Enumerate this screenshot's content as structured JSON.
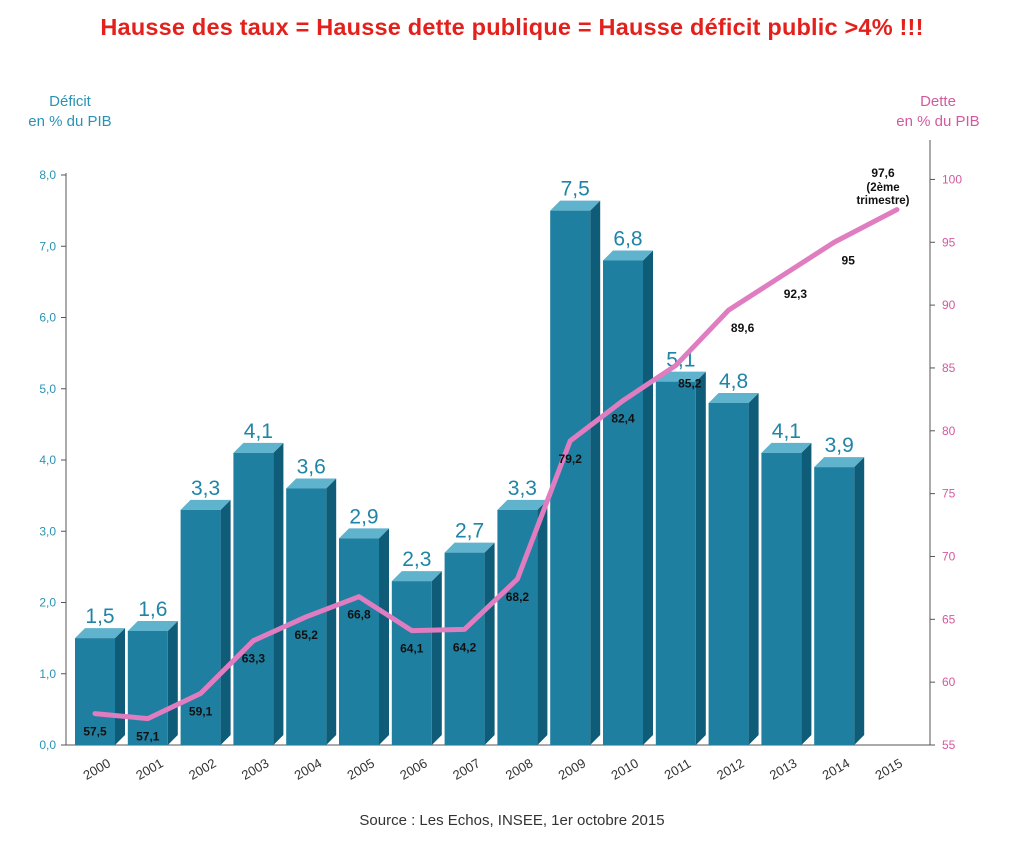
{
  "headline": "Hausse des taux = Hausse dette publique = Hausse déficit public >4% !!!",
  "source": "Source : Les Echos, INSEE, 1er octobre 2015",
  "colors": {
    "headline": "#e3201b",
    "bars": "#1f7fa0",
    "debt_line": "#e07cc0",
    "left_axis": "#2a93b4",
    "right_axis": "#d4599f"
  },
  "chart_data": {
    "type": "bar",
    "categories": [
      "2000",
      "2001",
      "2002",
      "2003",
      "2004",
      "2005",
      "2006",
      "2007",
      "2008",
      "2009",
      "2010",
      "2011",
      "2012",
      "2013",
      "2014",
      "2015"
    ],
    "left_axis": {
      "title": [
        "Déficit",
        "en % du PIB"
      ],
      "ticks": [
        "0,0",
        "1,0",
        "2,0",
        "3,0",
        "4,0",
        "5,0",
        "6,0",
        "7,0",
        "8,0"
      ],
      "ylim": [
        0,
        8
      ]
    },
    "right_axis": {
      "title": [
        "Dette",
        "en % du PIB"
      ],
      "ticks": [
        "55",
        "60",
        "65",
        "70",
        "75",
        "80",
        "85",
        "90",
        "95",
        "100"
      ],
      "ylim": [
        55,
        102.5
      ]
    },
    "series": [
      {
        "name": "Déficit en % du PIB",
        "type": "bar",
        "axis": "left",
        "values": [
          1.5,
          1.6,
          3.3,
          4.1,
          3.6,
          2.9,
          2.3,
          2.7,
          3.3,
          7.5,
          6.8,
          5.1,
          4.8,
          4.1,
          3.9,
          null
        ],
        "labels": [
          "1,5",
          "1,6",
          "3,3",
          "4,1",
          "3,6",
          "2,9",
          "2,3",
          "2,7",
          "3,3",
          "7,5",
          "6,8",
          "5,1",
          "4,8",
          "4,1",
          "3,9",
          ""
        ]
      },
      {
        "name": "Dette en % du PIB",
        "type": "line",
        "axis": "right",
        "values": [
          57.5,
          57.1,
          59.1,
          63.3,
          65.2,
          66.8,
          64.1,
          64.2,
          68.2,
          79.2,
          82.4,
          85.2,
          89.6,
          92.3,
          95,
          97.6
        ],
        "labels": [
          "57,5",
          "57,1",
          "59,1",
          "63,3",
          "65,2",
          "66,8",
          "64,1",
          "64,2",
          "68,2",
          "79,2",
          "82,4",
          "85,2",
          "89,6",
          "92,3",
          "95",
          "97,6"
        ],
        "last_label_note": [
          "(2ème",
          "trimestre)"
        ]
      }
    ]
  }
}
